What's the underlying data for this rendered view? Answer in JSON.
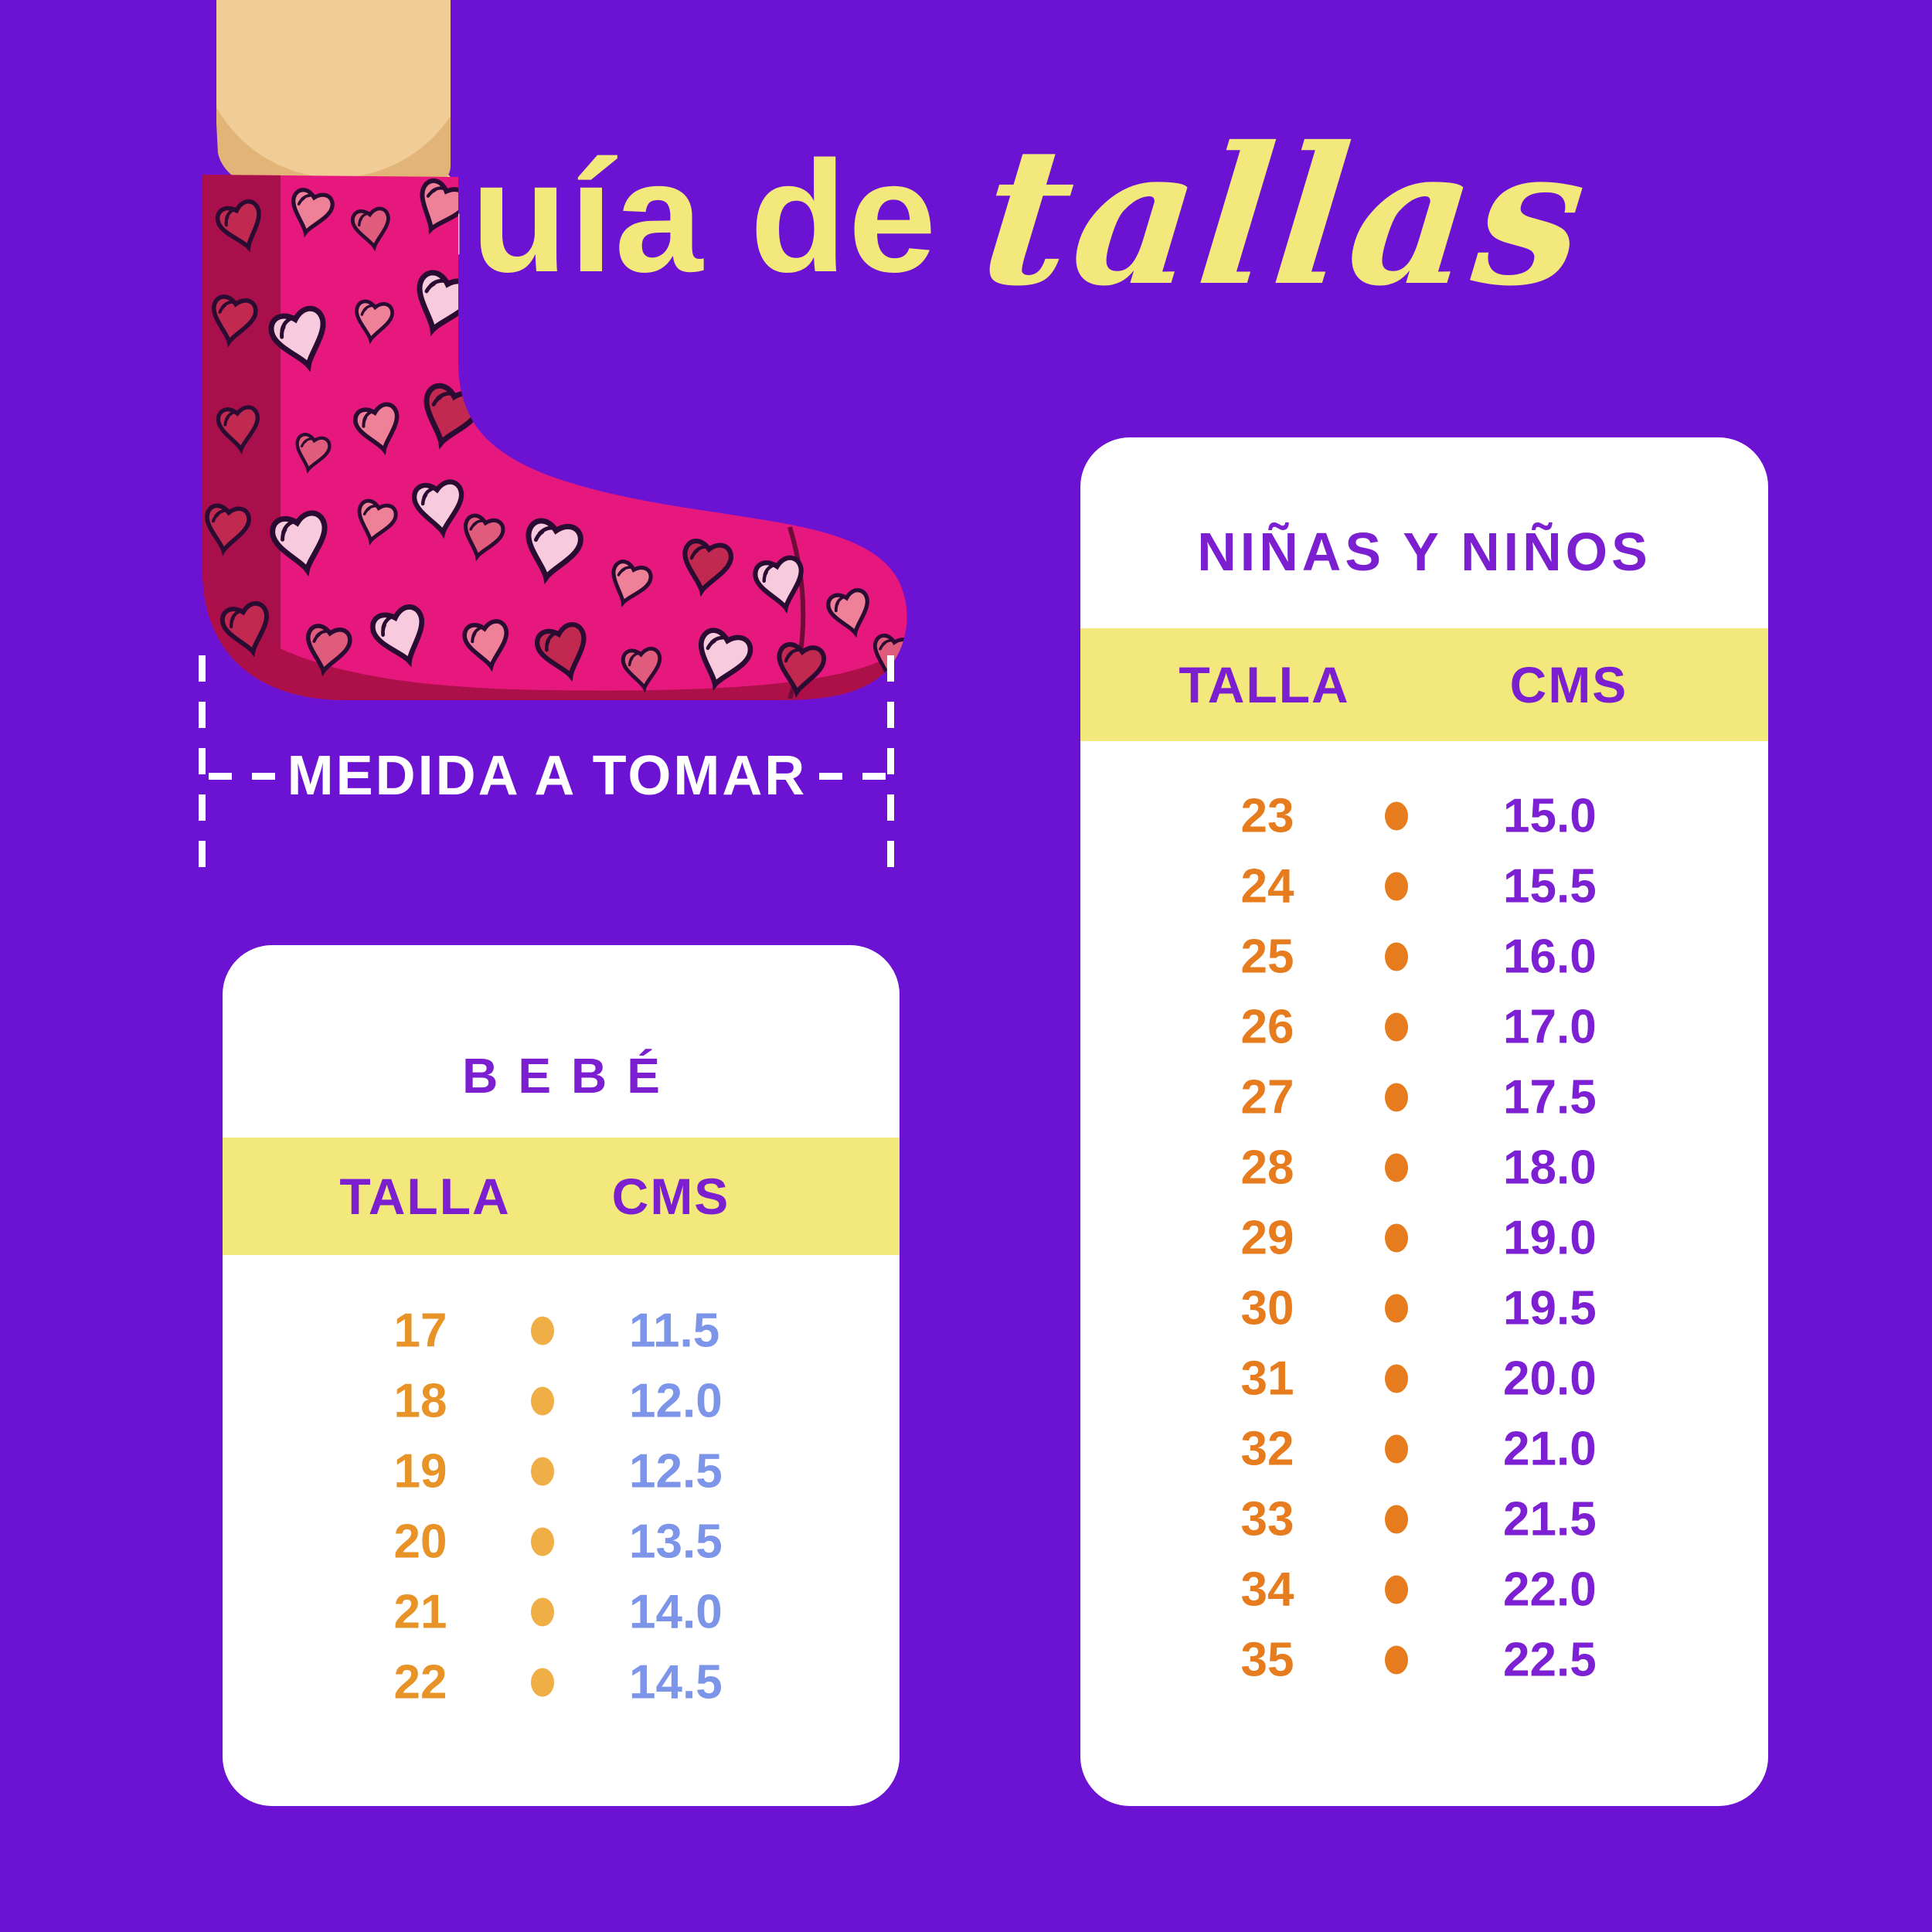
{
  "title": {
    "regular": "Guía de",
    "script": "tallas"
  },
  "measure": {
    "label": "MEDIDA A TOMAR"
  },
  "tables": [
    {
      "title": "BEBÉ",
      "columns": [
        "TALLA",
        "CMS"
      ],
      "rows": [
        {
          "talla": "17",
          "cms": "11.5"
        },
        {
          "talla": "18",
          "cms": "12.0"
        },
        {
          "talla": "19",
          "cms": "12.5"
        },
        {
          "talla": "20",
          "cms": "13.5"
        },
        {
          "talla": "21",
          "cms": "14.0"
        },
        {
          "talla": "22",
          "cms": "14.5"
        }
      ]
    },
    {
      "title": "NIÑAS Y NIÑOS",
      "columns": [
        "TALLA",
        "CMS"
      ],
      "rows": [
        {
          "talla": "23",
          "cms": "15.0"
        },
        {
          "talla": "24",
          "cms": "15.5"
        },
        {
          "talla": "25",
          "cms": "16.0"
        },
        {
          "talla": "26",
          "cms": "17.0"
        },
        {
          "talla": "27",
          "cms": "17.5"
        },
        {
          "talla": "28",
          "cms": "18.0"
        },
        {
          "talla": "29",
          "cms": "19.0"
        },
        {
          "talla": "30",
          "cms": "19.5"
        },
        {
          "talla": "31",
          "cms": "20.0"
        },
        {
          "talla": "32",
          "cms": "21.0"
        },
        {
          "talla": "33",
          "cms": "21.5"
        },
        {
          "talla": "34",
          "cms": "22.0"
        },
        {
          "talla": "35",
          "cms": "22.5"
        }
      ]
    }
  ],
  "colors": {
    "bg": "#6c12d2",
    "card": "#ffffff",
    "band": "#f2e87b",
    "heading-purple": "#7b1fd1",
    "title-yellow": "#f2e87c",
    "white": "#ffffff",
    "size-orange-left": "#e79327",
    "dot-left": "#f0ae47",
    "cms-blue": "#7d95e8",
    "size-orange-right": "#e67c1e",
    "dot-right": "#e67c1e",
    "cms-purple": "#7d1fd3",
    "skin": "#f0cd97",
    "skin-shadow": "#e2b478",
    "sock": "#e6187e",
    "sock-dark": "#a80f4b",
    "sock-sole": "#ad1048",
    "sock-seam": "#6e0b38",
    "heart-light": "#f8cadd",
    "heart-salmon": "#ee8098",
    "heart-rose": "#e05c7c",
    "heart-crimson": "#c22950",
    "heart-outline": "#2a0b31"
  }
}
